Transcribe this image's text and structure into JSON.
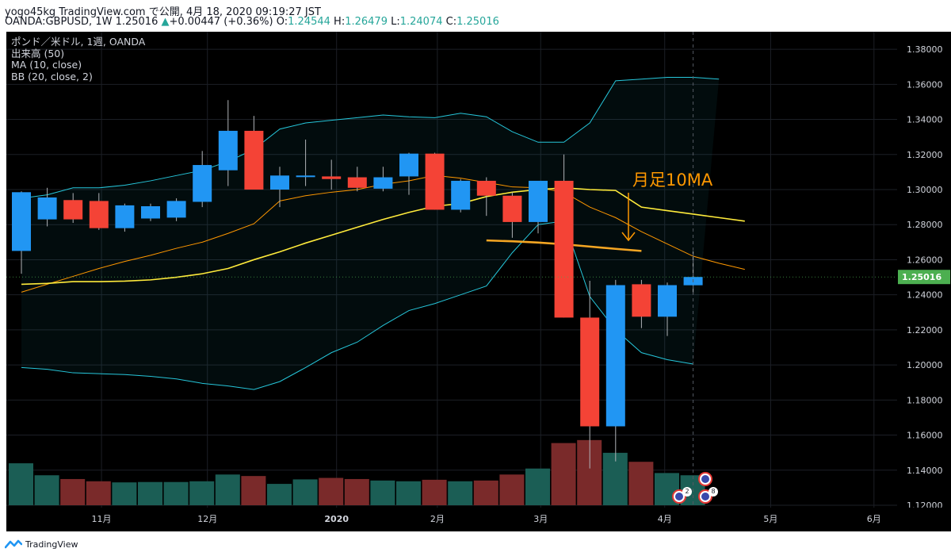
{
  "header": {
    "line1": "yogo45kg TradingView.com で公開, 4月 18, 2020 09:19:27 JST",
    "line2": {
      "symbol": "OANDA:GBPUSD, 1W 1.25016",
      "arrow": "▲",
      "change": "+0.00447 (+0.36%)",
      "o_label": "O:",
      "o_value": "1.24544",
      "h_label": "H:",
      "h_value": "1.26479",
      "l_label": "L:",
      "l_value": "1.24074",
      "c_label": "C:",
      "c_value": "1.25016"
    }
  },
  "legend": {
    "title": "ポンド／米ドル, 1週, OANDA",
    "volume": "出来高 (50)",
    "ma": "MA (10, close)",
    "bb": "BB (20, close, 2)"
  },
  "annotation": {
    "text": "月足10MA"
  },
  "footer": {
    "brand": "TradingView"
  },
  "events": {
    "us_count": "2",
    "uk_count": "8"
  },
  "colors": {
    "up": "#2196f3",
    "down": "#f44336",
    "vol_up": "#1b5e55",
    "vol_down": "#7a2a2a",
    "ma": "#ff9800",
    "ma_monthly": "#f5a623",
    "bb_basis": "#ffeb3b",
    "bb_band": "#26c6da",
    "last_price_bg": "#4caf50",
    "annotation": "#ff9800"
  },
  "chart_data": {
    "type": "candlestick",
    "title": "ポンド／米ドル, 1週, OANDA",
    "ylim": [
      1.12,
      1.39
    ],
    "y_ticks": [
      1.12,
      1.14,
      1.16,
      1.18,
      1.2,
      1.22,
      1.24,
      1.26,
      1.28,
      1.3,
      1.32,
      1.34,
      1.36,
      1.38
    ],
    "y_tick_labels": [
      "1.12000",
      "1.14000",
      "1.16000",
      "1.18000",
      "1.20000",
      "1.22000",
      "1.24000",
      "1.26000",
      "1.28000",
      "1.30000",
      "1.32000",
      "1.34000",
      "1.36000",
      "1.38000"
    ],
    "last_price": 1.25016,
    "last_price_label": "1.25016",
    "x_labels": [
      {
        "label": "11月",
        "index": 3.1
      },
      {
        "label": "12月",
        "index": 7.2
      },
      {
        "label": "2020",
        "index": 12.2
      },
      {
        "label": "2月",
        "index": 16.1
      },
      {
        "label": "3月",
        "index": 20.1
      },
      {
        "label": "4月",
        "index": 24.9
      },
      {
        "label": "5月",
        "index": 29.0
      },
      {
        "label": "6月",
        "index": 33.0
      }
    ],
    "candles": [
      {
        "o": 1.265,
        "h": 1.299,
        "l": 1.252,
        "c": 1.2985
      },
      {
        "o": 1.283,
        "h": 1.301,
        "l": 1.279,
        "c": 1.2955
      },
      {
        "o": 1.294,
        "h": 1.298,
        "l": 1.281,
        "c": 1.283
      },
      {
        "o": 1.2935,
        "h": 1.298,
        "l": 1.277,
        "c": 1.278
      },
      {
        "o": 1.278,
        "h": 1.292,
        "l": 1.276,
        "c": 1.291
      },
      {
        "o": 1.2835,
        "h": 1.292,
        "l": 1.282,
        "c": 1.2905
      },
      {
        "o": 1.284,
        "h": 1.295,
        "l": 1.282,
        "c": 1.2935
      },
      {
        "o": 1.293,
        "h": 1.322,
        "l": 1.29,
        "c": 1.314
      },
      {
        "o": 1.311,
        "h": 1.351,
        "l": 1.302,
        "c": 1.3335
      },
      {
        "o": 1.3335,
        "h": 1.342,
        "l": 1.302,
        "c": 1.3
      },
      {
        "o": 1.3,
        "h": 1.313,
        "l": 1.29,
        "c": 1.308
      },
      {
        "o": 1.308,
        "h": 1.3285,
        "l": 1.302,
        "c": 1.308
      },
      {
        "o": 1.3075,
        "h": 1.317,
        "l": 1.3,
        "c": 1.306
      },
      {
        "o": 1.307,
        "h": 1.313,
        "l": 1.299,
        "c": 1.301
      },
      {
        "o": 1.3005,
        "h": 1.313,
        "l": 1.299,
        "c": 1.307
      },
      {
        "o": 1.3075,
        "h": 1.321,
        "l": 1.297,
        "c": 1.3205
      },
      {
        "o": 1.3205,
        "h": 1.321,
        "l": 1.2885,
        "c": 1.2885
      },
      {
        "o": 1.2885,
        "h": 1.306,
        "l": 1.287,
        "c": 1.305
      },
      {
        "o": 1.305,
        "h": 1.307,
        "l": 1.285,
        "c": 1.2965
      },
      {
        "o": 1.2965,
        "h": 1.2985,
        "l": 1.2725,
        "c": 1.2815
      },
      {
        "o": 1.2815,
        "h": 1.305,
        "l": 1.275,
        "c": 1.305
      },
      {
        "o": 1.305,
        "h": 1.32,
        "l": 1.227,
        "c": 1.227
      },
      {
        "o": 1.227,
        "h": 1.248,
        "l": 1.141,
        "c": 1.165
      },
      {
        "o": 1.165,
        "h": 1.2485,
        "l": 1.145,
        "c": 1.2455
      },
      {
        "o": 1.246,
        "h": 1.2485,
        "l": 1.221,
        "c": 1.2275
      },
      {
        "o": 1.2275,
        "h": 1.247,
        "l": 1.2165,
        "c": 1.2455
      },
      {
        "o": 1.24544,
        "h": 1.26479,
        "l": 1.24074,
        "c": 1.25016
      }
    ],
    "volume": [
      5.6,
      4.0,
      3.5,
      3.2,
      3.05,
      3.1,
      3.1,
      3.2,
      4.1,
      3.9,
      2.85,
      3.45,
      3.65,
      3.5,
      3.3,
      3.2,
      3.4,
      3.2,
      3.3,
      4.1,
      4.9,
      8.3,
      8.7,
      7.0,
      5.8,
      4.3,
      4.0
    ],
    "volume_max": 9.0,
    "series": [
      {
        "type": "line",
        "role": "ma10",
        "values": [
          1.2415,
          1.246,
          1.2505,
          1.255,
          1.259,
          1.2625,
          1.2665,
          1.27,
          1.275,
          1.2805,
          1.2935,
          1.2965,
          1.2985,
          1.3,
          1.303,
          1.305,
          1.308,
          1.3065,
          1.304,
          1.3015,
          1.301,
          1.2985,
          1.29,
          1.284,
          1.276,
          1.269,
          1.262,
          1.258,
          1.2545
        ]
      },
      {
        "type": "line",
        "role": "bb_basis",
        "values": [
          1.246,
          1.2465,
          1.2475,
          1.2475,
          1.2478,
          1.2485,
          1.25,
          1.252,
          1.255,
          1.26,
          1.2645,
          1.2695,
          1.274,
          1.2785,
          1.283,
          1.287,
          1.2905,
          1.292,
          1.296,
          1.2985,
          1.3,
          1.301,
          1.3,
          1.2995,
          1.29,
          1.288,
          1.286,
          1.284,
          1.282
        ]
      },
      {
        "type": "line",
        "role": "bb_upper",
        "values": [
          1.295,
          1.297,
          1.301,
          1.301,
          1.3025,
          1.305,
          1.308,
          1.311,
          1.316,
          1.323,
          1.3345,
          1.338,
          1.3395,
          1.341,
          1.3425,
          1.3415,
          1.341,
          1.3435,
          1.3415,
          1.333,
          1.327,
          1.327,
          1.338,
          1.362,
          1.363,
          1.364,
          1.364,
          1.363
        ]
      },
      {
        "type": "line",
        "role": "bb_lower",
        "values": [
          1.1985,
          1.1975,
          1.1955,
          1.195,
          1.1945,
          1.1935,
          1.192,
          1.1895,
          1.188,
          1.186,
          1.1905,
          1.1985,
          1.207,
          1.213,
          1.2225,
          1.231,
          1.235,
          1.24,
          1.245,
          1.264,
          1.28,
          1.282,
          1.239,
          1.22,
          1.207,
          1.203,
          1.2005
        ]
      },
      {
        "type": "line",
        "role": "ma_monthly",
        "values": [
          1.271,
          1.2705,
          1.2698,
          1.2688,
          1.2675,
          1.2662,
          1.265
        ]
      }
    ]
  }
}
